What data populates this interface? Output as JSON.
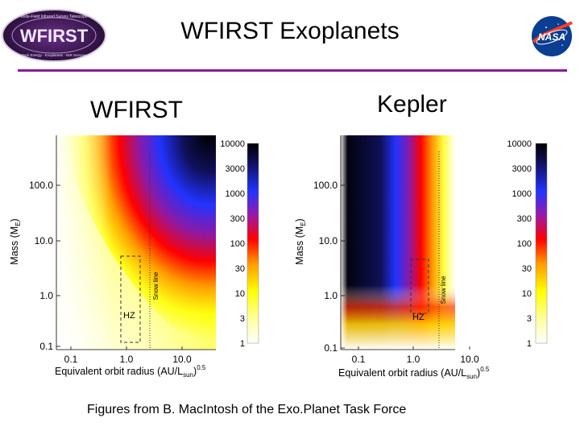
{
  "slide": {
    "title": "WFIRST Exoplanets",
    "wfirst_label": "WFIRST",
    "kepler_label": "Kepler",
    "caption": "Figures from B. MacIntosh of the Exo.Planet Task Force"
  },
  "logos": {
    "wfirst_logo_text": "WFIRST",
    "wfirst_logo_ring_text": "Wide-Field Infrared Survey Telescope",
    "wfirst_logo_bottom_text": "Dark Energy · Exoplanets · NIR Surveys",
    "nasa_logo_text": "NASA"
  },
  "colors": {
    "rule": "#8b1a9b",
    "logo_bg": "#2a0f3a"
  },
  "chart_data": [
    {
      "type": "heatmap",
      "panel": "WFIRST",
      "xlabel": "Equivalent orbit radius (AU/L",
      "xlabel_sub": "sun",
      "xlabel_sup": ")0.5",
      "ylabel": "Mass (M",
      "ylabel_sub": "E",
      "ylabel_end": ")",
      "x_ticks": [
        "0.1",
        "1.0",
        "10.0"
      ],
      "y_ticks": [
        "0.1",
        "1.0",
        "10.0",
        "100.0"
      ],
      "x_scale": "log",
      "y_scale": "log",
      "annotations": [
        "HZ",
        "Snow line"
      ],
      "colorbar": {
        "scale": "log",
        "ticks": [
          "10000",
          "3000",
          "1000",
          "300",
          "100",
          "30",
          "10",
          "3",
          "1"
        ]
      }
    },
    {
      "type": "heatmap",
      "panel": "Kepler",
      "xlabel": "Equivalent orbit radius (AU/L",
      "xlabel_sub": "sun",
      "xlabel_sup": ")0.5",
      "ylabel": "Mass (M",
      "ylabel_sub": "E",
      "ylabel_end": ")",
      "x_ticks": [
        "0.1",
        "1.0",
        "10.0"
      ],
      "y_ticks": [
        "0.1",
        "1.0",
        "10.0",
        "100.0"
      ],
      "x_scale": "log",
      "y_scale": "log",
      "annotations": [
        "HZ",
        "Snow line"
      ],
      "colorbar": {
        "scale": "log",
        "ticks": [
          "10000",
          "3000",
          "1000",
          "300",
          "100",
          "30",
          "10",
          "3",
          "1"
        ]
      }
    }
  ]
}
